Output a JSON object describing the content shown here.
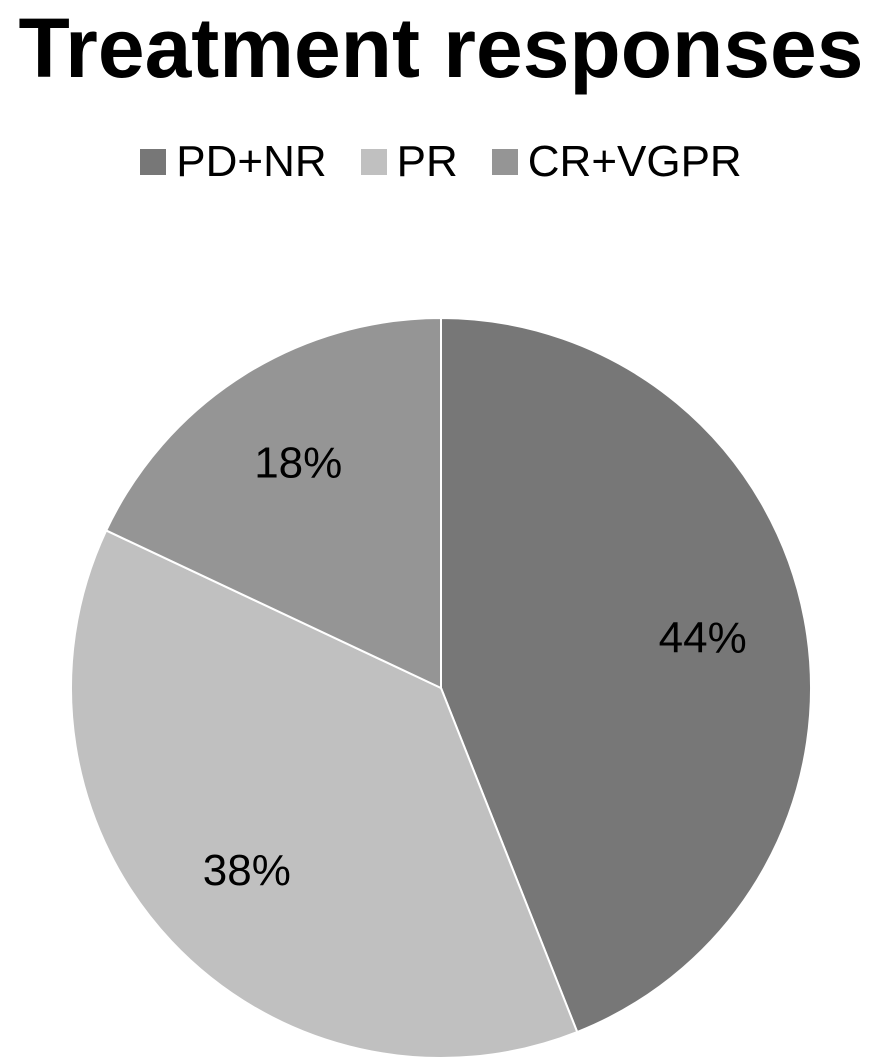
{
  "chart_data": {
    "type": "pie",
    "title": "Treatment responses",
    "categories": [
      "PD+NR",
      "PR",
      "CR+VGPR"
    ],
    "values": [
      44,
      38,
      18
    ],
    "data_labels": [
      "44%",
      "38%",
      "18%"
    ],
    "colors": [
      "#777777",
      "#c0c0c0",
      "#959595"
    ],
    "legend_position": "top",
    "start_angle_deg": 0,
    "direction": "clockwise"
  }
}
